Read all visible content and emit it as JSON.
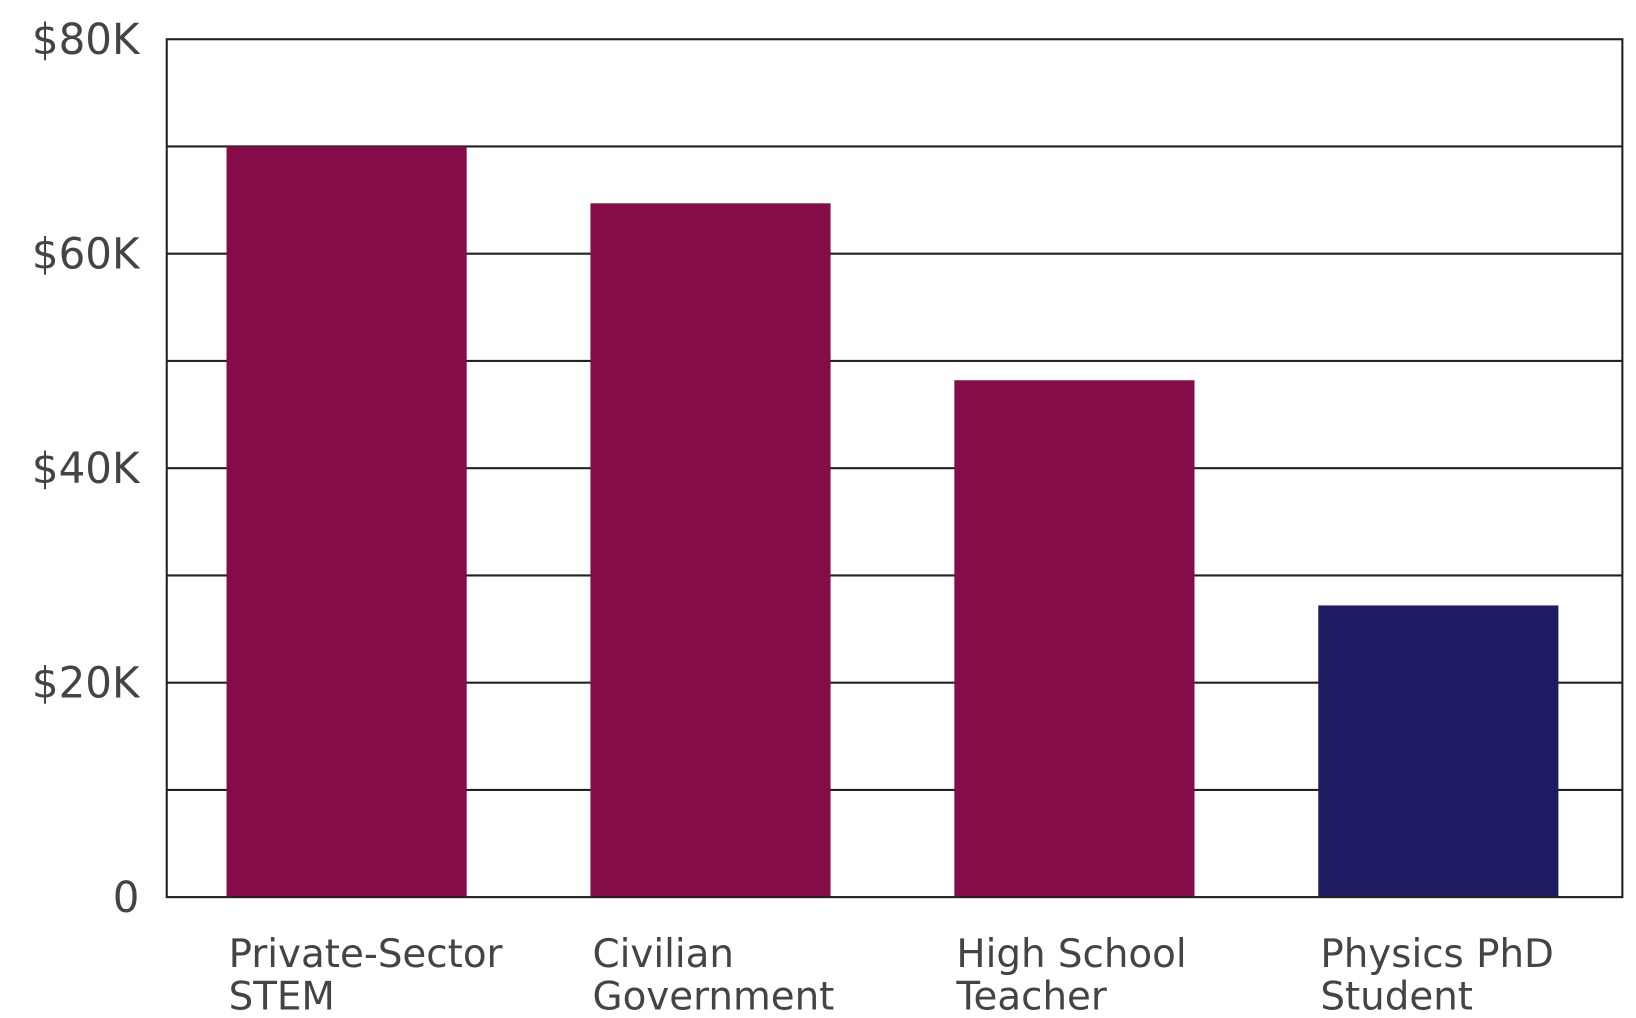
{
  "chart_data": {
    "type": "bar",
    "title": "",
    "xlabel": "",
    "ylabel": "",
    "categories": [
      [
        "Private-Sector",
        "STEM"
      ],
      [
        "Civilian",
        "Government"
      ],
      [
        "High School",
        "Teacher"
      ],
      [
        "Physics PhD",
        "Student"
      ]
    ],
    "values": [
      70000,
      64700,
      48200,
      27200
    ],
    "bar_colors": [
      "#850c48",
      "#850c48",
      "#850c48",
      "#1f1b63"
    ],
    "ylim": [
      0,
      80000
    ],
    "yticks": [
      0,
      20000,
      40000,
      60000,
      80000
    ],
    "ytick_labels": [
      "0",
      "$20K",
      "$40K",
      "$60K",
      "$80K"
    ],
    "gridlines_every": 10000,
    "grid": true,
    "legend": "none"
  }
}
